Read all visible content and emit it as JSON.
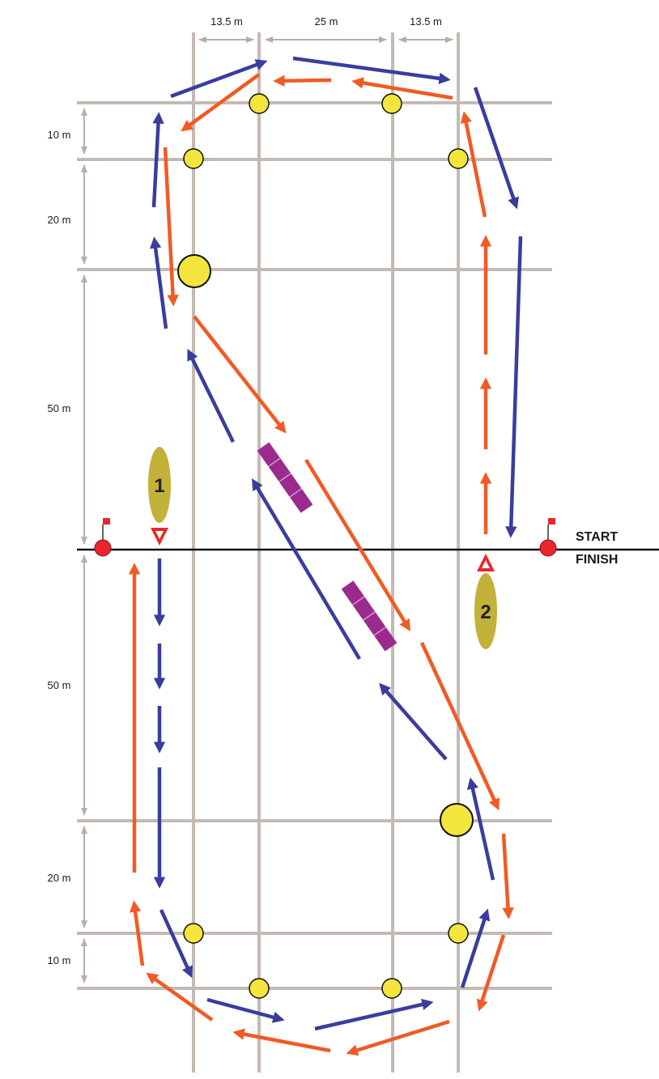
{
  "dimensions": {
    "top": [
      "13.5 m",
      "25 m",
      "13.5 m"
    ],
    "left": [
      "10 m",
      "20 m",
      "50 m",
      "50 m",
      "20 m",
      "10 m"
    ]
  },
  "labels": {
    "start": "START",
    "finish": "FINISH"
  },
  "boats": [
    {
      "number": "1"
    },
    {
      "number": "2"
    }
  ],
  "colors": {
    "grid": "#c4bab4",
    "dimension": "#b5b0ad",
    "buoy": "#f3e53c",
    "start_buoy": "#e8262b",
    "flag": "#e8262b",
    "line": "#111111",
    "course_boat1": "#3a3d9e",
    "course_boat2": "#f15a24",
    "boat_hull": "#c3b23a",
    "gate": "#9b2a8e"
  }
}
